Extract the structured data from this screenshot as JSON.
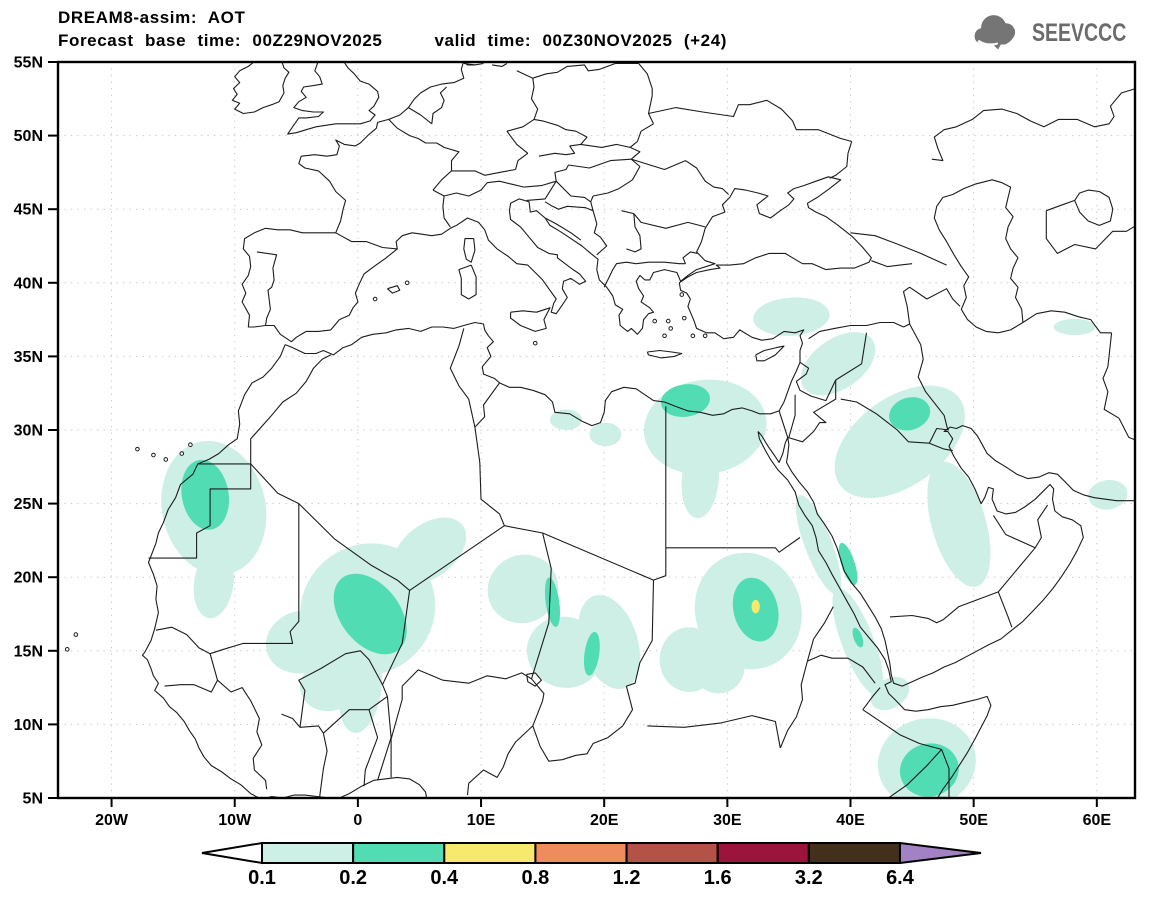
{
  "header": {
    "title": "DREAM8-assim: AOT",
    "base_time": "Forecast base time: 00Z29NOV2025",
    "valid_time": "valid time: 00Z30NOV2025 (+24)"
  },
  "logo": {
    "text": "SEEVCCC",
    "icon": "cloud-arrow-logo-icon",
    "color": "#6b6b6b"
  },
  "chart_data": {
    "type": "heatmap",
    "title": "DREAM8-assim: AOT",
    "variable": "Aerosol Optical Thickness",
    "map_domain": {
      "lon_min": -24.35,
      "lon_max": 63.1,
      "lat_min": 5,
      "lat_max": 55
    },
    "grid": "dotted",
    "lat_ticks": [
      {
        "value": 55,
        "label": "55N"
      },
      {
        "value": 50,
        "label": "50N"
      },
      {
        "value": 45,
        "label": "45N"
      },
      {
        "value": 40,
        "label": "40N"
      },
      {
        "value": 35,
        "label": "35N"
      },
      {
        "value": 30,
        "label": "30N"
      },
      {
        "value": 25,
        "label": "25N"
      },
      {
        "value": 20,
        "label": "20N"
      },
      {
        "value": 15,
        "label": "15N"
      },
      {
        "value": 10,
        "label": "10N"
      },
      {
        "value": 5,
        "label": "5N"
      }
    ],
    "lon_ticks": [
      {
        "value": -20,
        "label": "20W"
      },
      {
        "value": -10,
        "label": "10W"
      },
      {
        "value": 0,
        "label": "0"
      },
      {
        "value": 10,
        "label": "10E"
      },
      {
        "value": 20,
        "label": "20E"
      },
      {
        "value": 30,
        "label": "30E"
      },
      {
        "value": 40,
        "label": "40E"
      },
      {
        "value": 50,
        "label": "50E"
      },
      {
        "value": 60,
        "label": "60E"
      }
    ],
    "colorbar": {
      "labels": [
        "0.1",
        "0.2",
        "0.4",
        "0.8",
        "1.2",
        "1.6",
        "3.2",
        "6.4"
      ],
      "colors": [
        "#cdefe6",
        "#52dcb4",
        "#f5e96e",
        "#ee8c5d",
        "#b55248",
        "#9b143c",
        "#42301d"
      ],
      "under_color": "#ffffff",
      "over_color": "#a282c4"
    },
    "levels_shown": [
      0.1,
      0.2,
      0.4
    ],
    "regions": [
      {
        "name": "western-sahara-outer",
        "level": 0.1,
        "lon": -11.7,
        "lat": 24.7,
        "rx": 4.2,
        "ry": 4.6,
        "rot": -12
      },
      {
        "name": "western-sahara-south-tail",
        "level": 0.1,
        "lon": -11.7,
        "lat": 19.6,
        "rx": 1.6,
        "ry": 2.4,
        "rot": 8
      },
      {
        "name": "sahel-main",
        "level": 0.1,
        "lon": 0.8,
        "lat": 17.8,
        "rx": 5.6,
        "ry": 4.4,
        "rot": -36
      },
      {
        "name": "sahel-ne-arm",
        "level": 0.1,
        "lon": 5.8,
        "lat": 21.8,
        "rx": 3.4,
        "ry": 1.8,
        "rot": -38
      },
      {
        "name": "sahel-south-arm",
        "level": 0.1,
        "lon": 0.2,
        "lat": 12.4,
        "rx": 1.7,
        "ry": 3.0,
        "rot": 8
      },
      {
        "name": "sahel-west-arm",
        "level": 0.1,
        "lon": -4.6,
        "lat": 15.6,
        "rx": 2.9,
        "ry": 2.1,
        "rot": -18
      },
      {
        "name": "sahel-south-blob",
        "level": 0.1,
        "lon": -2.4,
        "lat": 12.6,
        "rx": 2.3,
        "ry": 1.7,
        "rot": -5
      },
      {
        "name": "chad-west",
        "level": 0.1,
        "lon": 13.4,
        "lat": 19.2,
        "rx": 2.9,
        "ry": 2.3,
        "rot": -30
      },
      {
        "name": "chad-central",
        "level": 0.1,
        "lon": 16.8,
        "lat": 14.9,
        "rx": 3.1,
        "ry": 2.4,
        "rot": 18
      },
      {
        "name": "chad-east",
        "level": 0.1,
        "lon": 20.4,
        "lat": 15.6,
        "rx": 2.3,
        "ry": 3.3,
        "rot": -18
      },
      {
        "name": "sudan-west-blob",
        "level": 0.1,
        "lon": 26.9,
        "lat": 14.4,
        "rx": 2.4,
        "ry": 2.2,
        "rot": 0
      },
      {
        "name": "sudan-outer",
        "level": 0.1,
        "lon": 31.7,
        "lat": 17.7,
        "rx": 4.3,
        "ry": 4.0,
        "rot": -18
      },
      {
        "name": "sudan-sw-tail",
        "level": 0.1,
        "lon": 29.3,
        "lat": 13.9,
        "rx": 2.1,
        "ry": 1.8,
        "rot": 20
      },
      {
        "name": "egypt-coast-outer",
        "level": 0.1,
        "lon": 28.2,
        "lat": 30.2,
        "rx": 5.0,
        "ry": 3.2,
        "rot": -8
      },
      {
        "name": "egypt-south-tail",
        "level": 0.1,
        "lon": 27.8,
        "lat": 26.6,
        "rx": 1.5,
        "ry": 2.6,
        "rot": 5
      },
      {
        "name": "libya-coast-small-1",
        "level": 0.1,
        "lon": 16.9,
        "lat": 30.7,
        "rx": 1.3,
        "ry": 0.7,
        "rot": 0
      },
      {
        "name": "libya-coast-small-2",
        "level": 0.1,
        "lon": 20.1,
        "lat": 29.7,
        "rx": 1.3,
        "ry": 0.8,
        "rot": 0
      },
      {
        "name": "turkey-south",
        "level": 0.1,
        "lon": 35.2,
        "lat": 37.7,
        "rx": 3.1,
        "ry": 1.3,
        "rot": -4
      },
      {
        "name": "syria-arm",
        "level": 0.1,
        "lon": 39.0,
        "lat": 34.5,
        "rx": 3.4,
        "ry": 1.7,
        "rot": -35
      },
      {
        "name": "mesopotamia-swath",
        "level": 0.1,
        "lon": 44.0,
        "lat": 29.2,
        "rx": 6.0,
        "ry": 3.0,
        "rot": -36
      },
      {
        "name": "gulf-coast-arm",
        "level": 0.1,
        "lon": 48.8,
        "lat": 23.6,
        "rx": 2.2,
        "ry": 4.4,
        "rot": -16
      },
      {
        "name": "red-sea-north-band",
        "level": 0.1,
        "lon": 37.4,
        "lat": 22.2,
        "rx": 1.1,
        "ry": 3.6,
        "rot": -21
      },
      {
        "name": "red-sea-south-band",
        "level": 0.1,
        "lon": 40.6,
        "lat": 15.6,
        "rx": 1.3,
        "ry": 3.9,
        "rot": -21
      },
      {
        "name": "bab-el-mandeb",
        "level": 0.1,
        "lon": 43.2,
        "lat": 12.1,
        "rx": 1.7,
        "ry": 1.0,
        "rot": -32
      },
      {
        "name": "horn-of-africa-outer",
        "level": 0.1,
        "lon": 46.2,
        "lat": 7.4,
        "rx": 4.0,
        "ry": 3.0,
        "rot": -14
      },
      {
        "name": "oman-coast-small",
        "level": 0.1,
        "lon": 60.9,
        "lat": 25.6,
        "rx": 1.6,
        "ry": 1.0,
        "rot": -8
      },
      {
        "name": "caspian-south-sliver",
        "level": 0.1,
        "lon": 58.2,
        "lat": 37.0,
        "rx": 1.7,
        "ry": 0.55,
        "rot": 0
      },
      {
        "name": "western-sahara-core",
        "level": 0.2,
        "lon": -12.4,
        "lat": 25.6,
        "rx": 1.9,
        "ry": 2.4,
        "rot": -10
      },
      {
        "name": "sahel-core",
        "level": 0.2,
        "lon": 1.0,
        "lat": 17.5,
        "rx": 2.4,
        "ry": 3.1,
        "rot": -38
      },
      {
        "name": "chad-streak-west",
        "level": 0.2,
        "lon": 15.8,
        "lat": 18.3,
        "rx": 0.55,
        "ry": 1.7,
        "rot": -8
      },
      {
        "name": "chad-streak-east",
        "level": 0.2,
        "lon": 19.0,
        "lat": 14.8,
        "rx": 0.6,
        "ry": 1.5,
        "rot": 8
      },
      {
        "name": "sudan-core",
        "level": 0.2,
        "lon": 32.3,
        "lat": 17.8,
        "rx": 1.8,
        "ry": 2.2,
        "rot": -14
      },
      {
        "name": "egypt-coast-core",
        "level": 0.2,
        "lon": 26.6,
        "lat": 32.0,
        "rx": 2.0,
        "ry": 1.1,
        "rot": -8
      },
      {
        "name": "iraq-core",
        "level": 0.2,
        "lon": 44.8,
        "lat": 31.1,
        "rx": 1.7,
        "ry": 1.1,
        "rot": -18
      },
      {
        "name": "red-sea-teal-streak",
        "level": 0.2,
        "lon": 39.8,
        "lat": 20.9,
        "rx": 0.55,
        "ry": 1.5,
        "rot": -18
      },
      {
        "name": "red-sea-teal-dot",
        "level": 0.2,
        "lon": 40.6,
        "lat": 15.9,
        "rx": 0.35,
        "ry": 0.7,
        "rot": -20
      },
      {
        "name": "horn-of-africa-core",
        "level": 0.2,
        "lon": 46.4,
        "lat": 6.9,
        "rx": 2.4,
        "ry": 1.8,
        "rot": -14
      },
      {
        "name": "sudan-peak",
        "level": 0.4,
        "lon": 32.3,
        "lat": 18.0,
        "rx": 0.34,
        "ry": 0.46,
        "rot": 0
      }
    ]
  }
}
